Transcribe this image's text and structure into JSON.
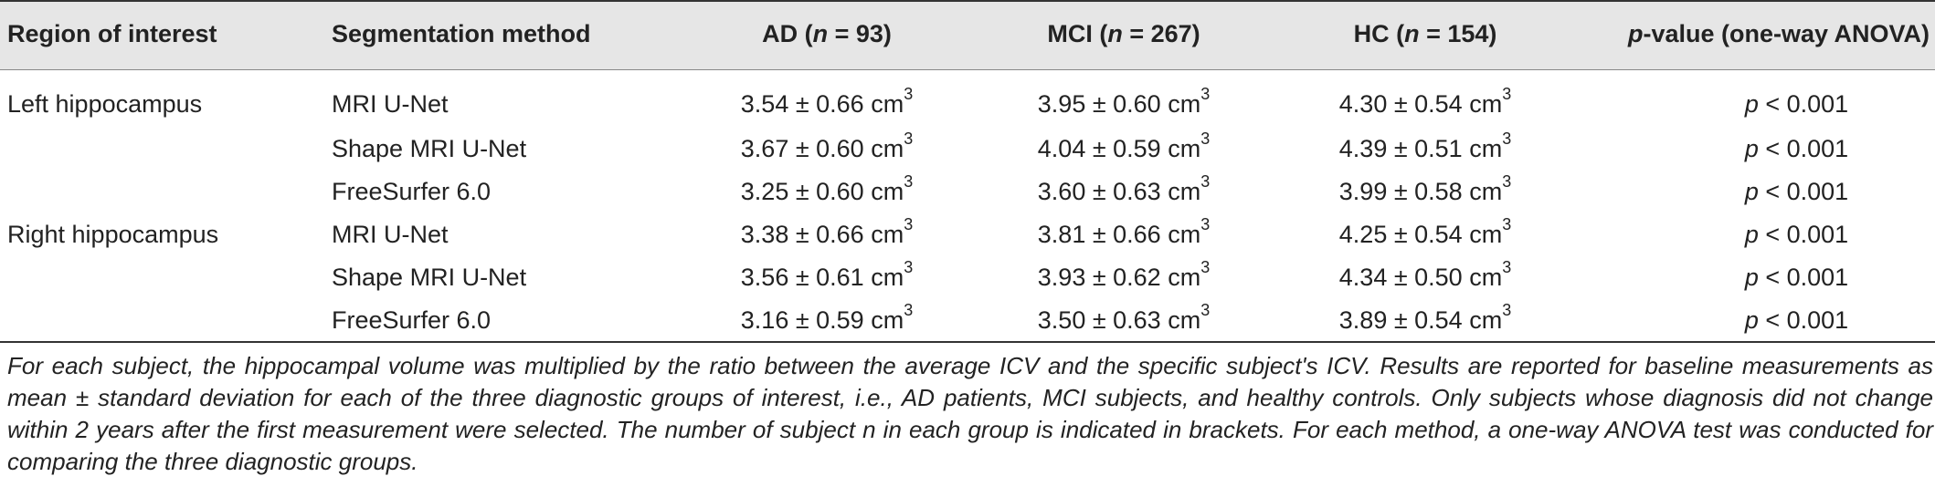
{
  "table": {
    "headers": {
      "region": "Region of interest",
      "method": "Segmentation method",
      "ad_prefix": "AD (",
      "ad_n": "n",
      "ad_suffix": " = 93)",
      "mci_prefix": "MCI (",
      "mci_n": "n",
      "mci_suffix": " = 267)",
      "hc_prefix": "HC (",
      "hc_n": "n",
      "hc_suffix": " = 154)",
      "p_italic": "p",
      "p_suffix": "-value (one-way ANOVA)"
    },
    "unit": "cm",
    "unit_exp": "3",
    "p_symbol": "p",
    "rows": [
      {
        "region": "Left hippocampus",
        "method": "MRI U-Net",
        "ad": "3.54 ± 0.66",
        "mci": "3.95 ± 0.60",
        "hc": "4.30 ± 0.54",
        "p": " < 0.001"
      },
      {
        "region": "",
        "method": "Shape MRI U-Net",
        "ad": "3.67 ± 0.60",
        "mci": "4.04 ± 0.59",
        "hc": "4.39 ± 0.51",
        "p": " < 0.001"
      },
      {
        "region": "",
        "method": "FreeSurfer 6.0",
        "ad": "3.25 ± 0.60",
        "mci": "3.60 ± 0.63",
        "hc": "3.99 ± 0.58",
        "p": " < 0.001"
      },
      {
        "region": "Right hippocampus",
        "method": "MRI U-Net",
        "ad": "3.38 ± 0.66",
        "mci": "3.81 ± 0.66",
        "hc": "4.25 ± 0.54",
        "p": " < 0.001"
      },
      {
        "region": "",
        "method": "Shape MRI U-Net",
        "ad": "3.56 ± 0.61",
        "mci": "3.93 ± 0.62",
        "hc": "4.34 ± 0.50",
        "p": " < 0.001"
      },
      {
        "region": "",
        "method": "FreeSurfer 6.0",
        "ad": "3.16 ± 0.59",
        "mci": "3.50 ± 0.63",
        "hc": "3.89 ± 0.54",
        "p": " < 0.001"
      }
    ]
  },
  "footnote": "For each subject, the hippocampal volume was multiplied by the ratio between the average ICV and the specific subject's ICV. Results are reported for baseline measurements as mean ± standard deviation for each of the three diagnostic groups of interest, i.e., AD patients, MCI subjects, and healthy controls. Only subjects whose diagnosis did not change within 2 years after the first measurement were selected. The number of subject n in each group is indicated in brackets. For each method, a one-way ANOVA test was conducted for comparing the three diagnostic groups."
}
